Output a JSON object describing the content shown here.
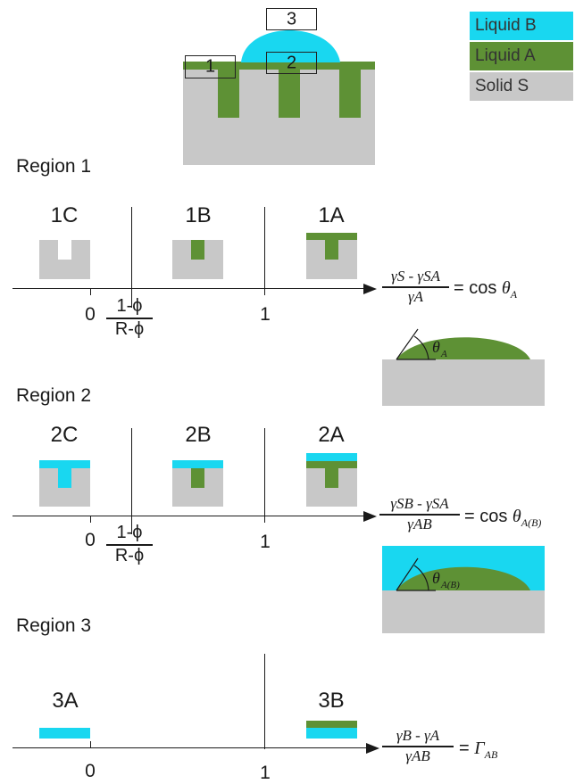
{
  "legend": {
    "liquid_b": "Liquid B",
    "liquid_a": "Liquid A",
    "solid_s": "Solid S",
    "colors": {
      "liquid_b": "#19d7f0",
      "liquid_a": "#5e9135",
      "solid_s": "#c8c8c8"
    }
  },
  "top_figure": {
    "box_1": "1",
    "box_2": "2",
    "box_3": "3"
  },
  "region1": {
    "title": "Region 1",
    "panels": [
      "1C",
      "1B",
      "1A"
    ],
    "ticks": {
      "zero": "0",
      "one": "1",
      "threshold_num": "1-ϕ",
      "threshold_den": "R-ϕ"
    },
    "equation": {
      "num": "γS - γSA",
      "den": "γA",
      "rhs": "= cos",
      "theta": "θ",
      "theta_sub": "A"
    }
  },
  "region2": {
    "title": "Region 2",
    "panels": [
      "2C",
      "2B",
      "2A"
    ],
    "ticks": {
      "zero": "0",
      "one": "1",
      "threshold_num": "1-ϕ",
      "threshold_den": "R-ϕ"
    },
    "equation": {
      "num": "γSB - γSA",
      "den": "γAB",
      "rhs": "= cos",
      "theta": "θ",
      "theta_sub": "A(B)"
    }
  },
  "region3": {
    "title": "Region 3",
    "panels": [
      "3A",
      "3B"
    ],
    "ticks": {
      "zero": "0",
      "one": "1"
    },
    "equation": {
      "num": "γB - γA",
      "den": "γAB",
      "rhs": "=",
      "gamma": "Γ",
      "gamma_sub": "AB"
    }
  }
}
